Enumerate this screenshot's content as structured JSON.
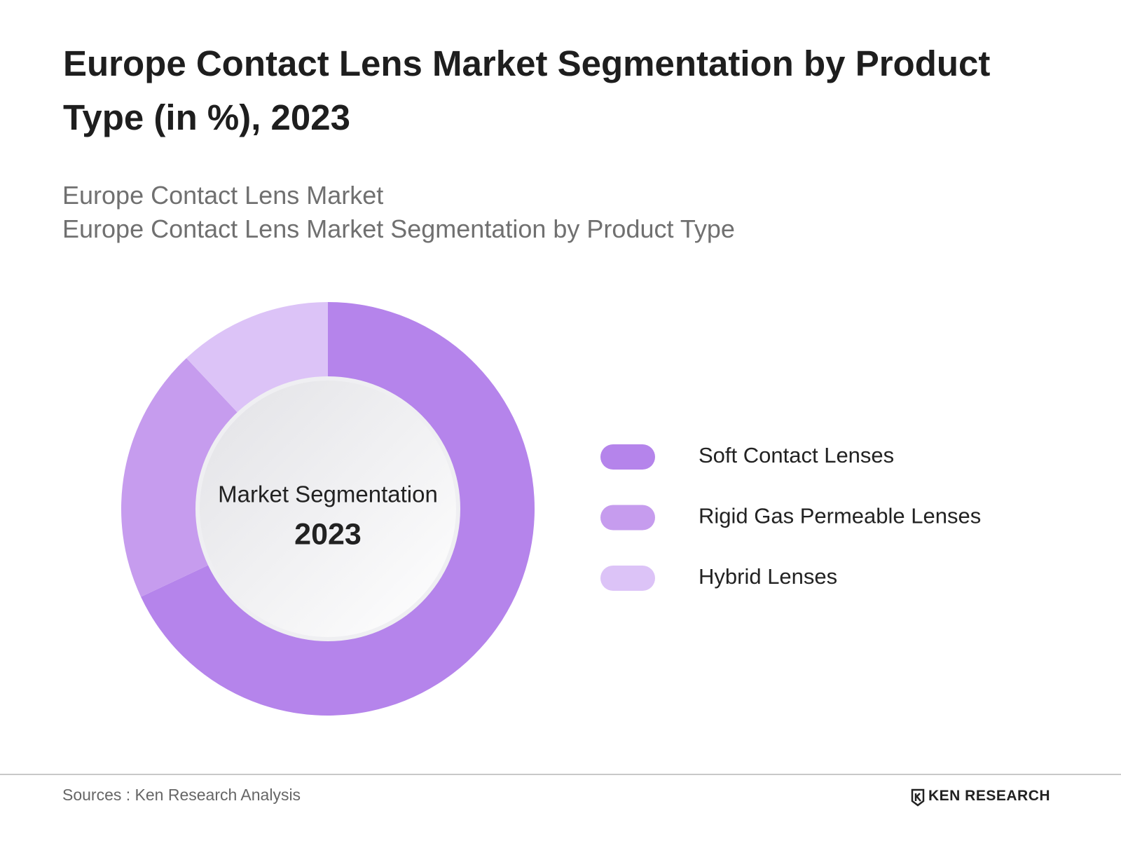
{
  "chart_data": {
    "type": "donut",
    "title": "Europe Contact Lens Market Segmentation by Product Type (in %), 2023",
    "subtitles": [
      "Europe Contact Lens Market",
      "Europe Contact Lens Market Segmentation by Product Type"
    ],
    "center_label": "Market Segmentation",
    "center_year": "2023",
    "categories": [
      "Soft Contact Lenses",
      "Rigid Gas Permeable Lenses",
      "Hybrid Lenses"
    ],
    "values": [
      68,
      20,
      12
    ],
    "colors": [
      "#b584eb",
      "#c69cee",
      "#dcc3f7"
    ]
  },
  "footer": {
    "source": "Sources : Ken Research Analysis",
    "brand": "KEN RESEARCH"
  }
}
